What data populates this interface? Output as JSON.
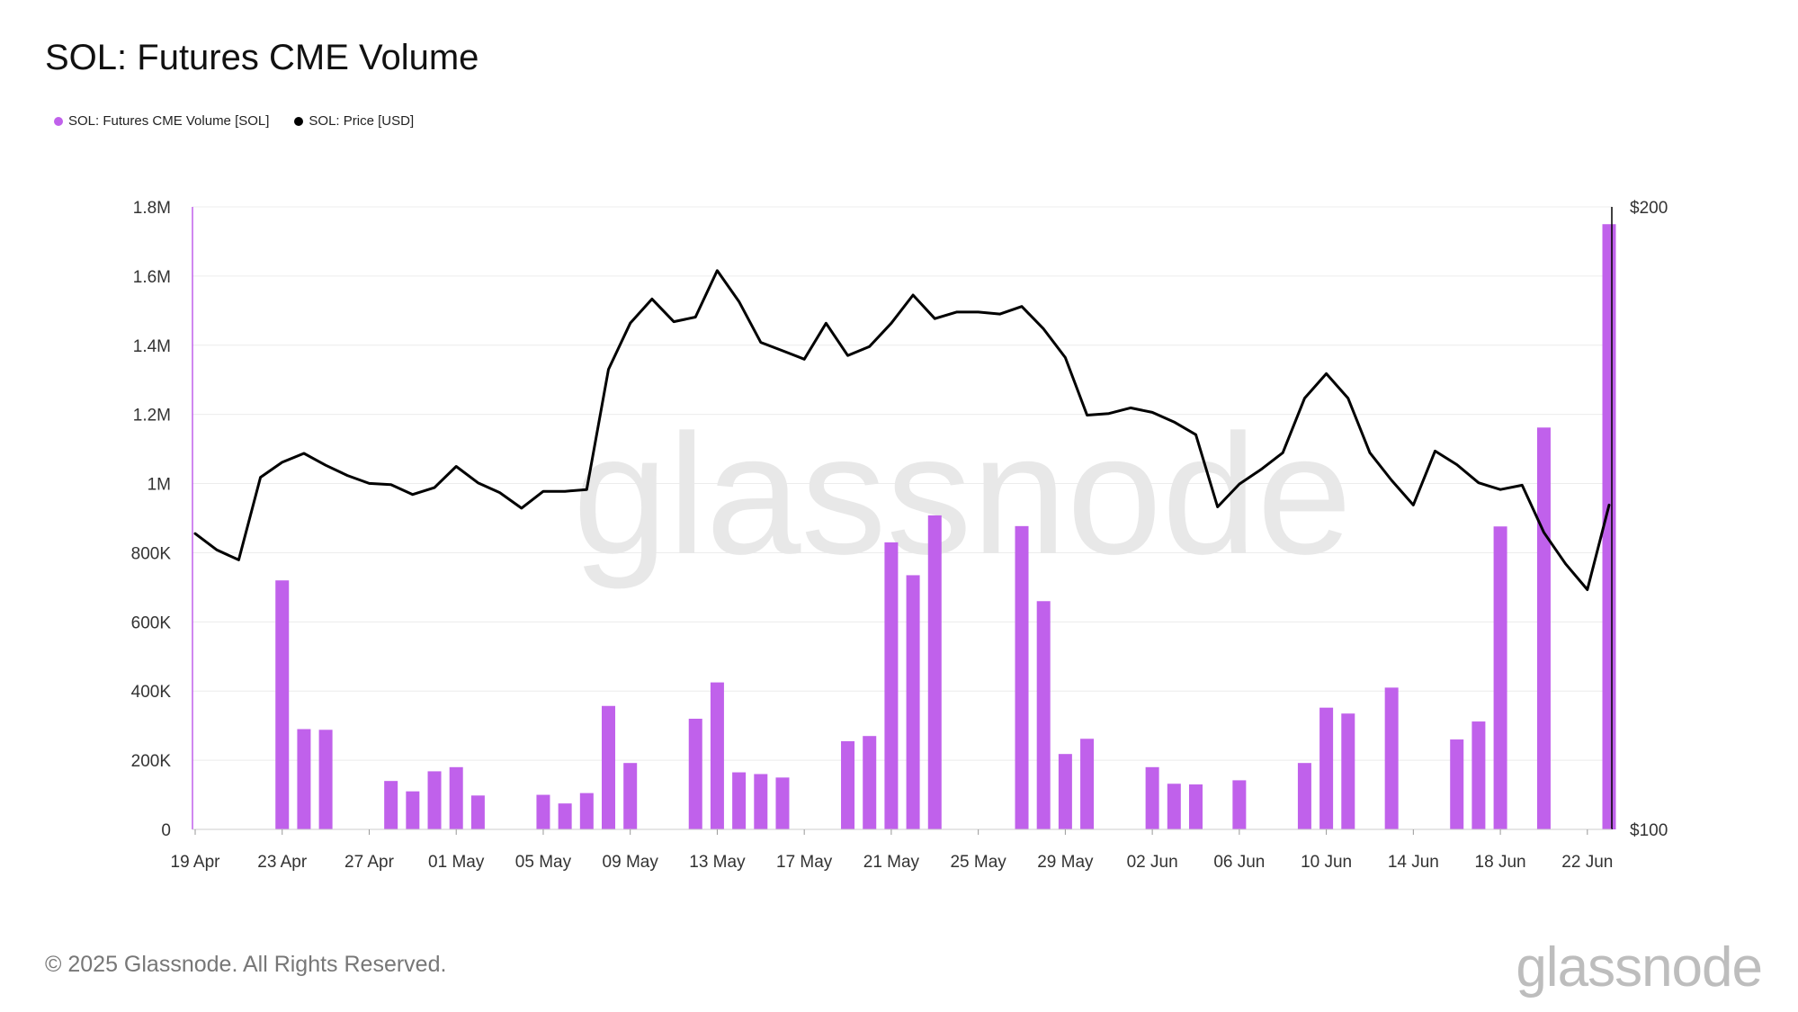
{
  "header": {
    "title": "SOL: Futures CME Volume"
  },
  "legend": [
    {
      "label": "SOL: Futures CME Volume [SOL]",
      "color": "#c061eb"
    },
    {
      "label": "SOL: Price [USD]",
      "color": "#000000"
    }
  ],
  "footer": {
    "copyright": "© 2025 Glassnode. All Rights Reserved.",
    "brand": "glassnode"
  },
  "watermark": "glassnode",
  "chart_data": {
    "type": "bar",
    "title": "SOL: Futures CME Volume",
    "x_start": "2025-04-19",
    "x_end": "2025-06-23",
    "x_ticks": [
      "19 Apr",
      "23 Apr",
      "27 Apr",
      "01 May",
      "05 May",
      "09 May",
      "13 May",
      "17 May",
      "21 May",
      "25 May",
      "29 May",
      "02 Jun",
      "06 Jun",
      "10 Jun",
      "14 Jun",
      "18 Jun",
      "22 Jun"
    ],
    "y_left": {
      "ticks": [
        "0",
        "200K",
        "400K",
        "600K",
        "800K",
        "1M",
        "1.2M",
        "1.4M",
        "1.6M",
        "1.8M"
      ],
      "range": [
        0,
        1800000
      ]
    },
    "y_right": {
      "ticks": [
        "$100",
        "$200"
      ],
      "range": [
        100,
        200
      ],
      "scale": "log"
    },
    "grid": true,
    "legend_position": "top-left",
    "series": [
      {
        "name": "SOL: Futures CME Volume [SOL]",
        "type": "bar",
        "axis": "left",
        "color": "#c061eb",
        "points": [
          {
            "x": "2025-04-23",
            "y": 720000
          },
          {
            "x": "2025-04-24",
            "y": 290000
          },
          {
            "x": "2025-04-25",
            "y": 288000
          },
          {
            "x": "2025-04-28",
            "y": 140000
          },
          {
            "x": "2025-04-29",
            "y": 110000
          },
          {
            "x": "2025-04-30",
            "y": 168000
          },
          {
            "x": "2025-05-01",
            "y": 180000
          },
          {
            "x": "2025-05-02",
            "y": 98000
          },
          {
            "x": "2025-05-05",
            "y": 100000
          },
          {
            "x": "2025-05-06",
            "y": 75000
          },
          {
            "x": "2025-05-07",
            "y": 105000
          },
          {
            "x": "2025-05-08",
            "y": 357000
          },
          {
            "x": "2025-05-09",
            "y": 192000
          },
          {
            "x": "2025-05-12",
            "y": 320000
          },
          {
            "x": "2025-05-13",
            "y": 425000
          },
          {
            "x": "2025-05-14",
            "y": 165000
          },
          {
            "x": "2025-05-15",
            "y": 160000
          },
          {
            "x": "2025-05-16",
            "y": 150000
          },
          {
            "x": "2025-05-19",
            "y": 255000
          },
          {
            "x": "2025-05-20",
            "y": 270000
          },
          {
            "x": "2025-05-21",
            "y": 830000
          },
          {
            "x": "2025-05-22",
            "y": 735000
          },
          {
            "x": "2025-05-23",
            "y": 908000
          },
          {
            "x": "2025-05-27",
            "y": 877000
          },
          {
            "x": "2025-05-28",
            "y": 660000
          },
          {
            "x": "2025-05-29",
            "y": 218000
          },
          {
            "x": "2025-05-30",
            "y": 262000
          },
          {
            "x": "2025-06-02",
            "y": 180000
          },
          {
            "x": "2025-06-03",
            "y": 132000
          },
          {
            "x": "2025-06-04",
            "y": 130000
          },
          {
            "x": "2025-06-06",
            "y": 142000
          },
          {
            "x": "2025-06-09",
            "y": 192000
          },
          {
            "x": "2025-06-10",
            "y": 352000
          },
          {
            "x": "2025-06-11",
            "y": 335000
          },
          {
            "x": "2025-06-13",
            "y": 410000
          },
          {
            "x": "2025-06-16",
            "y": 260000
          },
          {
            "x": "2025-06-17",
            "y": 312000
          },
          {
            "x": "2025-06-18",
            "y": 876000
          },
          {
            "x": "2025-06-20",
            "y": 1162000
          },
          {
            "x": "2025-06-23",
            "y": 1750000
          }
        ]
      },
      {
        "name": "SOL: Price [USD]",
        "type": "line",
        "axis": "right",
        "color": "#000000",
        "points": [
          {
            "x": "2025-04-19",
            "y": 139
          },
          {
            "x": "2025-04-20",
            "y": 136.5
          },
          {
            "x": "2025-04-21",
            "y": 135
          },
          {
            "x": "2025-04-22",
            "y": 148
          },
          {
            "x": "2025-04-23",
            "y": 150.5
          },
          {
            "x": "2025-04-24",
            "y": 152
          },
          {
            "x": "2025-04-25",
            "y": 150
          },
          {
            "x": "2025-04-26",
            "y": 148.3
          },
          {
            "x": "2025-04-27",
            "y": 147
          },
          {
            "x": "2025-04-28",
            "y": 146.8
          },
          {
            "x": "2025-04-29",
            "y": 145.2
          },
          {
            "x": "2025-04-30",
            "y": 146.3
          },
          {
            "x": "2025-05-01",
            "y": 149.8
          },
          {
            "x": "2025-05-02",
            "y": 147.1
          },
          {
            "x": "2025-05-03",
            "y": 145.5
          },
          {
            "x": "2025-05-04",
            "y": 143
          },
          {
            "x": "2025-05-05",
            "y": 145.7
          },
          {
            "x": "2025-05-06",
            "y": 145.7
          },
          {
            "x": "2025-05-07",
            "y": 146
          },
          {
            "x": "2025-05-08",
            "y": 166.9
          },
          {
            "x": "2025-05-09",
            "y": 175.7
          },
          {
            "x": "2025-05-10",
            "y": 180.5
          },
          {
            "x": "2025-05-11",
            "y": 176
          },
          {
            "x": "2025-05-12",
            "y": 176.9
          },
          {
            "x": "2025-05-13",
            "y": 186.3
          },
          {
            "x": "2025-05-14",
            "y": 180
          },
          {
            "x": "2025-05-15",
            "y": 172
          },
          {
            "x": "2025-05-16",
            "y": 170.4
          },
          {
            "x": "2025-05-17",
            "y": 168.8
          },
          {
            "x": "2025-05-18",
            "y": 175.7
          },
          {
            "x": "2025-05-19",
            "y": 169.5
          },
          {
            "x": "2025-05-20",
            "y": 171.2
          },
          {
            "x": "2025-05-21",
            "y": 175.7
          },
          {
            "x": "2025-05-22",
            "y": 181.3
          },
          {
            "x": "2025-05-23",
            "y": 176.6
          },
          {
            "x": "2025-05-24",
            "y": 177.9
          },
          {
            "x": "2025-05-25",
            "y": 177.9
          },
          {
            "x": "2025-05-26",
            "y": 177.5
          },
          {
            "x": "2025-05-27",
            "y": 179
          },
          {
            "x": "2025-05-28",
            "y": 174.6
          },
          {
            "x": "2025-05-29",
            "y": 169.1
          },
          {
            "x": "2025-05-30",
            "y": 158.6
          },
          {
            "x": "2025-05-31",
            "y": 158.9
          },
          {
            "x": "2025-06-01",
            "y": 159.9
          },
          {
            "x": "2025-06-02",
            "y": 159.1
          },
          {
            "x": "2025-06-03",
            "y": 157.4
          },
          {
            "x": "2025-06-04",
            "y": 155.2
          },
          {
            "x": "2025-06-05",
            "y": 143.2
          },
          {
            "x": "2025-06-06",
            "y": 146.9
          },
          {
            "x": "2025-06-07",
            "y": 149.3
          },
          {
            "x": "2025-06-08",
            "y": 152.1
          },
          {
            "x": "2025-06-09",
            "y": 161.6
          },
          {
            "x": "2025-06-10",
            "y": 166.1
          },
          {
            "x": "2025-06-11",
            "y": 161.6
          },
          {
            "x": "2025-06-12",
            "y": 152.1
          },
          {
            "x": "2025-06-13",
            "y": 147.5
          },
          {
            "x": "2025-06-14",
            "y": 143.5
          },
          {
            "x": "2025-06-15",
            "y": 152.4
          },
          {
            "x": "2025-06-16",
            "y": 150.1
          },
          {
            "x": "2025-06-17",
            "y": 147.1
          },
          {
            "x": "2025-06-18",
            "y": 146
          },
          {
            "x": "2025-06-19",
            "y": 146.7
          },
          {
            "x": "2025-06-20",
            "y": 139.2
          },
          {
            "x": "2025-06-21",
            "y": 134.4
          },
          {
            "x": "2025-06-22",
            "y": 130.6
          },
          {
            "x": "2025-06-23",
            "y": 143.5
          }
        ]
      }
    ]
  }
}
